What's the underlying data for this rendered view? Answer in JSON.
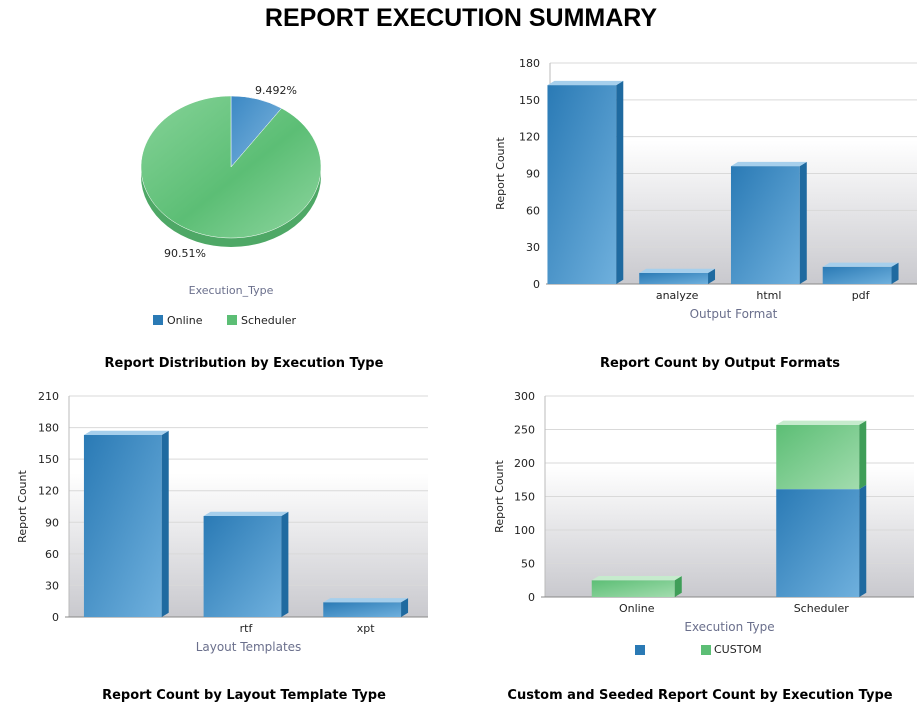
{
  "page": {
    "title": "REPORT EXECUTION SUMMARY"
  },
  "colors": {
    "blue": "#2a7ab5",
    "blue_light": "#6fb0dd",
    "blue_top": "#a6cfec",
    "blue_side": "#1f6aa0",
    "green": "#5cbe75",
    "green_light": "#a2dcae",
    "green_top": "#c6ebcd",
    "green_side": "#3f9e58",
    "axis_title": "#6a6f8c",
    "grid": "#d9d9d9"
  },
  "chart_data": [
    {
      "id": "execution_type_pie",
      "type": "pie",
      "title": "Report Distribution by Execution Type",
      "axis_label": "Execution_Type",
      "slices": [
        {
          "name": "Online",
          "value": 9.492,
          "label": "9.492%",
          "color": "blue"
        },
        {
          "name": "Scheduler",
          "value": 90.51,
          "label": "90.51%",
          "color": "green"
        }
      ],
      "legend": [
        "Online",
        "Scheduler"
      ]
    },
    {
      "id": "output_format_bar",
      "type": "bar",
      "title": "Report Count by Output Formats",
      "xlabel": "Output Format",
      "ylabel": "Report Count",
      "ylim": [
        0,
        180
      ],
      "yticks": [
        0,
        30,
        60,
        90,
        120,
        150,
        180
      ],
      "categories": [
        "",
        "analyze",
        "html",
        "pdf"
      ],
      "values": [
        162,
        9,
        96,
        14
      ]
    },
    {
      "id": "layout_template_bar",
      "type": "bar",
      "title": "Report Count by Layout Template Type",
      "xlabel": "Layout Templates",
      "ylabel": "Report Count",
      "ylim": [
        0,
        210
      ],
      "yticks": [
        0,
        30,
        60,
        90,
        120,
        150,
        180,
        210
      ],
      "categories": [
        "",
        "rtf",
        "xpt"
      ],
      "values": [
        173,
        96,
        14
      ]
    },
    {
      "id": "custom_seeded_stacked",
      "type": "bar",
      "stacked": true,
      "title": "Custom and Seeded Report Count by Execution Type",
      "xlabel": "Execution Type",
      "ylabel": "Report Count",
      "ylim": [
        0,
        300
      ],
      "yticks": [
        0,
        50,
        100,
        150,
        200,
        250,
        300
      ],
      "categories": [
        "Online",
        "Scheduler"
      ],
      "series": [
        {
          "name": "",
          "color": "blue",
          "values": [
            0,
            161
          ]
        },
        {
          "name": "CUSTOM",
          "color": "green",
          "values": [
            25,
            96
          ]
        }
      ]
    }
  ]
}
